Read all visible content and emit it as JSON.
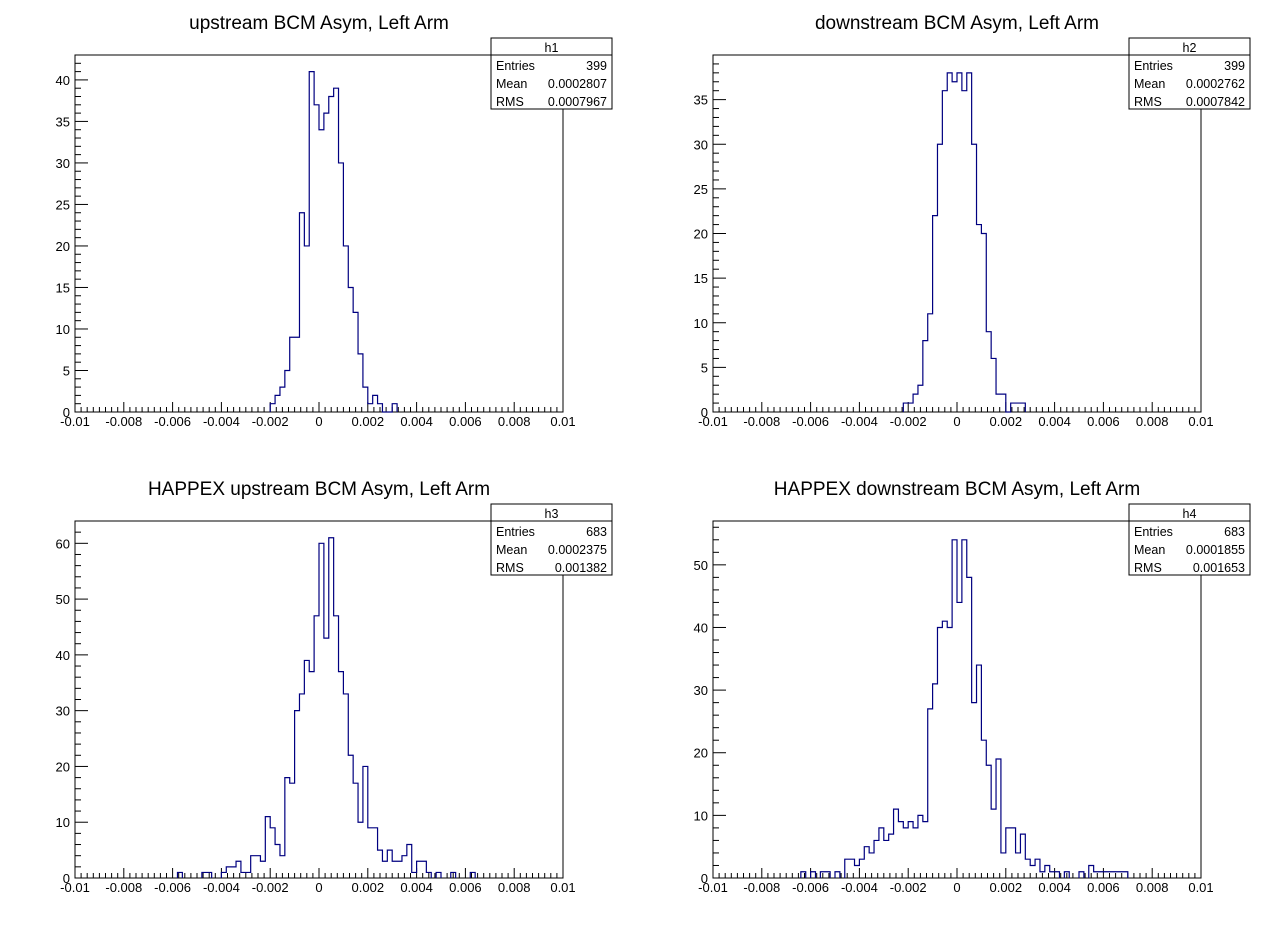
{
  "window": {
    "type": "ROOT canvas, 2x2 histograms"
  },
  "colors": {
    "histogram_line": "#000080",
    "frame": "#000000",
    "background": "#ffffff"
  },
  "chart_data": [
    {
      "type": "bar",
      "histogram": true,
      "title": "upstream BCM Asym, Left Arm",
      "xlabel": "",
      "ylabel": "",
      "xlim": [
        -0.01,
        0.01
      ],
      "ylim": [
        0,
        43
      ],
      "xticks": [
        -0.01,
        -0.008,
        -0.006,
        -0.004,
        -0.002,
        0,
        0.002,
        0.004,
        0.006,
        0.008,
        0.01
      ],
      "xtick_labels": [
        "-0.01",
        "-0.008",
        "-0.006",
        "-0.004",
        "-0.002",
        "0",
        "0.002",
        "0.004",
        "0.006",
        "0.008",
        "0.01"
      ],
      "yticks": [
        0,
        5,
        10,
        15,
        20,
        25,
        30,
        35,
        40
      ],
      "ytick_labels": [
        "0",
        "5",
        "10",
        "15",
        "20",
        "25",
        "30",
        "35",
        "40"
      ],
      "bin_width": 0.0002,
      "bins": [
        [
          -0.002,
          1
        ],
        [
          -0.0018,
          2
        ],
        [
          -0.0016,
          3
        ],
        [
          -0.0014,
          5
        ],
        [
          -0.0012,
          9
        ],
        [
          -0.001,
          9
        ],
        [
          -0.0008,
          24
        ],
        [
          -0.0006,
          20
        ],
        [
          -0.0004,
          41
        ],
        [
          -0.0002,
          37
        ],
        [
          0,
          34
        ],
        [
          0.0002,
          36
        ],
        [
          0.0004,
          38
        ],
        [
          0.0006,
          39
        ],
        [
          0.0008,
          30
        ],
        [
          0.001,
          20
        ],
        [
          0.0012,
          15
        ],
        [
          0.0014,
          12
        ],
        [
          0.0016,
          7
        ],
        [
          0.0018,
          3
        ],
        [
          0.002,
          1
        ],
        [
          0.0022,
          2
        ],
        [
          0.0024,
          1
        ],
        [
          0.0026,
          0
        ],
        [
          0.0028,
          0
        ],
        [
          0.003,
          1
        ]
      ],
      "stats": {
        "name": "h1",
        "rows": [
          [
            "Entries",
            "399"
          ],
          [
            "Mean",
            "0.0002807"
          ],
          [
            "RMS",
            "0.0007967"
          ]
        ]
      }
    },
    {
      "type": "bar",
      "histogram": true,
      "title": "downstream BCM Asym, Left Arm",
      "xlabel": "",
      "ylabel": "",
      "xlim": [
        -0.01,
        0.01
      ],
      "ylim": [
        0,
        40
      ],
      "xticks": [
        -0.01,
        -0.008,
        -0.006,
        -0.004,
        -0.002,
        0,
        0.002,
        0.004,
        0.006,
        0.008,
        0.01
      ],
      "xtick_labels": [
        "-0.01",
        "-0.008",
        "-0.006",
        "-0.004",
        "-0.002",
        "0",
        "0.002",
        "0.004",
        "0.006",
        "0.008",
        "0.01"
      ],
      "yticks": [
        0,
        5,
        10,
        15,
        20,
        25,
        30,
        35
      ],
      "ytick_labels": [
        "0",
        "5",
        "10",
        "15",
        "20",
        "25",
        "30",
        "35"
      ],
      "bin_width": 0.0002,
      "bins": [
        [
          -0.0022,
          1
        ],
        [
          -0.002,
          1
        ],
        [
          -0.0018,
          2
        ],
        [
          -0.0016,
          3
        ],
        [
          -0.0014,
          8
        ],
        [
          -0.0012,
          11
        ],
        [
          -0.001,
          22
        ],
        [
          -0.0008,
          30
        ],
        [
          -0.0006,
          36
        ],
        [
          -0.0004,
          38
        ],
        [
          -0.0002,
          37
        ],
        [
          0,
          38
        ],
        [
          0.0002,
          36
        ],
        [
          0.0004,
          38
        ],
        [
          0.0006,
          30
        ],
        [
          0.0008,
          21
        ],
        [
          0.001,
          20
        ],
        [
          0.0012,
          9
        ],
        [
          0.0014,
          6
        ],
        [
          0.0016,
          2
        ],
        [
          0.0018,
          2
        ],
        [
          0.002,
          0
        ],
        [
          0.0022,
          1
        ],
        [
          0.0024,
          1
        ],
        [
          0.0026,
          1
        ]
      ],
      "stats": {
        "name": "h2",
        "rows": [
          [
            "Entries",
            "399"
          ],
          [
            "Mean",
            "0.0002762"
          ],
          [
            "RMS",
            "0.0007842"
          ]
        ]
      }
    },
    {
      "type": "bar",
      "histogram": true,
      "title": "HAPPEX upstream BCM Asym, Left Arm",
      "xlabel": "",
      "ylabel": "",
      "xlim": [
        -0.01,
        0.01
      ],
      "ylim": [
        0,
        64
      ],
      "xticks": [
        -0.01,
        -0.008,
        -0.006,
        -0.004,
        -0.002,
        0,
        0.002,
        0.004,
        0.006,
        0.008,
        0.01
      ],
      "xtick_labels": [
        "-0.01",
        "-0.008",
        "-0.006",
        "-0.004",
        "-0.002",
        "0",
        "0.002",
        "0.004",
        "0.006",
        "0.008",
        "0.01"
      ],
      "yticks": [
        0,
        10,
        20,
        30,
        40,
        50,
        60
      ],
      "ytick_labels": [
        "0",
        "10",
        "20",
        "30",
        "40",
        "50",
        "60"
      ],
      "bin_width": 0.0002,
      "bins": [
        [
          -0.0058,
          1
        ],
        [
          -0.0048,
          1
        ],
        [
          -0.0046,
          1
        ],
        [
          -0.004,
          1
        ],
        [
          -0.0038,
          2
        ],
        [
          -0.0036,
          2
        ],
        [
          -0.0034,
          3
        ],
        [
          -0.0032,
          1
        ],
        [
          -0.003,
          1
        ],
        [
          -0.0028,
          4
        ],
        [
          -0.0026,
          4
        ],
        [
          -0.0024,
          3
        ],
        [
          -0.0022,
          11
        ],
        [
          -0.002,
          9
        ],
        [
          -0.0018,
          6
        ],
        [
          -0.0016,
          4
        ],
        [
          -0.0014,
          18
        ],
        [
          -0.0012,
          17
        ],
        [
          -0.001,
          30
        ],
        [
          -0.0008,
          33
        ],
        [
          -0.0006,
          39
        ],
        [
          -0.0004,
          37
        ],
        [
          -0.0002,
          47
        ],
        [
          0,
          60
        ],
        [
          0.0002,
          43
        ],
        [
          0.0004,
          61
        ],
        [
          0.0006,
          47
        ],
        [
          0.0008,
          37
        ],
        [
          0.001,
          33
        ],
        [
          0.0012,
          22
        ],
        [
          0.0014,
          17
        ],
        [
          0.0016,
          10
        ],
        [
          0.0018,
          20
        ],
        [
          0.002,
          9
        ],
        [
          0.0022,
          9
        ],
        [
          0.0024,
          5
        ],
        [
          0.0026,
          3
        ],
        [
          0.0028,
          5
        ],
        [
          0.003,
          3
        ],
        [
          0.0032,
          3
        ],
        [
          0.0034,
          4
        ],
        [
          0.0036,
          6
        ],
        [
          0.0038,
          1
        ],
        [
          0.004,
          3
        ],
        [
          0.0042,
          3
        ],
        [
          0.0044,
          1
        ],
        [
          0.0048,
          1
        ],
        [
          0.0054,
          1
        ],
        [
          0.0062,
          1
        ]
      ],
      "stats": {
        "name": "h3",
        "rows": [
          [
            "Entries",
            "683"
          ],
          [
            "Mean",
            "0.0002375"
          ],
          [
            "RMS",
            "0.001382"
          ]
        ]
      }
    },
    {
      "type": "bar",
      "histogram": true,
      "title": "HAPPEX downstream BCM Asym, Left Arm",
      "xlabel": "",
      "ylabel": "",
      "xlim": [
        -0.01,
        0.01
      ],
      "ylim": [
        0,
        57
      ],
      "xticks": [
        -0.01,
        -0.008,
        -0.006,
        -0.004,
        -0.002,
        0,
        0.002,
        0.004,
        0.006,
        0.008,
        0.01
      ],
      "xtick_labels": [
        "-0.01",
        "-0.008",
        "-0.006",
        "-0.004",
        "-0.002",
        "0",
        "0.002",
        "0.004",
        "0.006",
        "0.008",
        "0.01"
      ],
      "yticks": [
        0,
        10,
        20,
        30,
        40,
        50
      ],
      "ytick_labels": [
        "0",
        "10",
        "20",
        "30",
        "40",
        "50"
      ],
      "bin_width": 0.0002,
      "bins": [
        [
          -0.0064,
          1
        ],
        [
          -0.006,
          1
        ],
        [
          -0.0056,
          1
        ],
        [
          -0.0054,
          1
        ],
        [
          -0.005,
          1
        ],
        [
          -0.0046,
          3
        ],
        [
          -0.0044,
          3
        ],
        [
          -0.0042,
          2
        ],
        [
          -0.004,
          3
        ],
        [
          -0.0038,
          5
        ],
        [
          -0.0036,
          4
        ],
        [
          -0.0034,
          6
        ],
        [
          -0.0032,
          8
        ],
        [
          -0.003,
          6
        ],
        [
          -0.0028,
          7
        ],
        [
          -0.0026,
          11
        ],
        [
          -0.0024,
          9
        ],
        [
          -0.0022,
          8
        ],
        [
          -0.002,
          9
        ],
        [
          -0.0018,
          8
        ],
        [
          -0.0016,
          10
        ],
        [
          -0.0014,
          9
        ],
        [
          -0.0012,
          27
        ],
        [
          -0.001,
          31
        ],
        [
          -0.0008,
          40
        ],
        [
          -0.0006,
          41
        ],
        [
          -0.0004,
          40
        ],
        [
          -0.0002,
          54
        ],
        [
          0,
          44
        ],
        [
          0.0002,
          54
        ],
        [
          0.0004,
          48
        ],
        [
          0.0006,
          28
        ],
        [
          0.0008,
          34
        ],
        [
          0.001,
          22
        ],
        [
          0.0012,
          18
        ],
        [
          0.0014,
          11
        ],
        [
          0.0016,
          19
        ],
        [
          0.0018,
          4
        ],
        [
          0.002,
          8
        ],
        [
          0.0022,
          8
        ],
        [
          0.0024,
          4
        ],
        [
          0.0026,
          7
        ],
        [
          0.0028,
          3
        ],
        [
          0.003,
          2
        ],
        [
          0.0032,
          3
        ],
        [
          0.0034,
          1
        ],
        [
          0.0036,
          2
        ],
        [
          0.0038,
          1
        ],
        [
          0.004,
          1
        ],
        [
          0.0044,
          1
        ],
        [
          0.005,
          1
        ],
        [
          0.0054,
          2
        ],
        [
          0.0056,
          1
        ],
        [
          0.0058,
          1
        ],
        [
          0.006,
          1
        ],
        [
          0.0062,
          1
        ],
        [
          0.0064,
          1
        ],
        [
          0.0066,
          1
        ],
        [
          0.0068,
          1
        ]
      ],
      "stats": {
        "name": "h4",
        "rows": [
          [
            "Entries",
            "683"
          ],
          [
            "Mean",
            "0.0001855"
          ],
          [
            "RMS",
            "0.001653"
          ]
        ]
      }
    }
  ]
}
